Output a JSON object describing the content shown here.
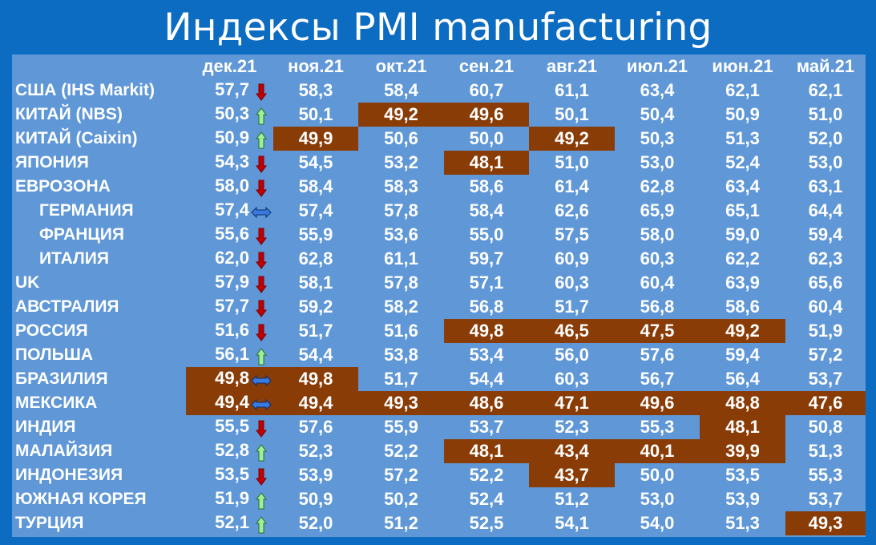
{
  "title": "Индексы PMI manufacturing",
  "columns": [
    "дек.21",
    "ноя.21",
    "окт.21",
    "сен.21",
    "авг.21",
    "июл.21",
    "июн.21",
    "май.21"
  ],
  "colors": {
    "background": "#0b6cc1",
    "table": "#5f97d7",
    "highlight": "#8a3c07",
    "text": "#ffffff",
    "down_arrow": "#c00000",
    "up_arrow": "#90ee90",
    "flat_arrow": "#3a7ae0"
  },
  "rows": [
    {
      "name": "США (IHS Markit)",
      "indent": false,
      "trend": "down",
      "values": [
        "57,7",
        "58,3",
        "58,4",
        "60,7",
        "61,1",
        "63,4",
        "62,1",
        "62,1"
      ],
      "highlight": [
        false,
        false,
        false,
        false,
        false,
        false,
        false,
        false
      ]
    },
    {
      "name": "КИТАЙ (NBS)",
      "indent": false,
      "trend": "up",
      "values": [
        "50,3",
        "50,1",
        "49,2",
        "49,6",
        "50,1",
        "50,4",
        "50,9",
        "51,0"
      ],
      "highlight": [
        false,
        false,
        true,
        true,
        false,
        false,
        false,
        false
      ]
    },
    {
      "name": "КИТАЙ (Caixin)",
      "indent": false,
      "trend": "up",
      "values": [
        "50,9",
        "49,9",
        "50,6",
        "50,0",
        "49,2",
        "50,3",
        "51,3",
        "52,0"
      ],
      "highlight": [
        false,
        true,
        false,
        false,
        true,
        false,
        false,
        false
      ]
    },
    {
      "name": "ЯПОНИЯ",
      "indent": false,
      "trend": "down",
      "values": [
        "54,3",
        "54,5",
        "53,2",
        "48,1",
        "51,0",
        "53,0",
        "52,4",
        "53,0"
      ],
      "highlight": [
        false,
        false,
        false,
        true,
        false,
        false,
        false,
        false
      ]
    },
    {
      "name": "ЕВРОЗОНА",
      "indent": false,
      "trend": "down",
      "values": [
        "58,0",
        "58,4",
        "58,3",
        "58,6",
        "61,4",
        "62,8",
        "63,4",
        "63,1"
      ],
      "highlight": [
        false,
        false,
        false,
        false,
        false,
        false,
        false,
        false
      ]
    },
    {
      "name": "ГЕРМАНИЯ",
      "indent": true,
      "trend": "flat",
      "values": [
        "57,4",
        "57,4",
        "57,8",
        "58,4",
        "62,6",
        "65,9",
        "65,1",
        "64,4"
      ],
      "highlight": [
        false,
        false,
        false,
        false,
        false,
        false,
        false,
        false
      ]
    },
    {
      "name": "ФРАНЦИЯ",
      "indent": true,
      "trend": "down",
      "values": [
        "55,6",
        "55,9",
        "53,6",
        "55,0",
        "57,5",
        "58,0",
        "59,0",
        "59,4"
      ],
      "highlight": [
        false,
        false,
        false,
        false,
        false,
        false,
        false,
        false
      ]
    },
    {
      "name": "ИТАЛИЯ",
      "indent": true,
      "trend": "down",
      "values": [
        "62,0",
        "62,8",
        "61,1",
        "59,7",
        "60,9",
        "60,3",
        "62,2",
        "62,3"
      ],
      "highlight": [
        false,
        false,
        false,
        false,
        false,
        false,
        false,
        false
      ]
    },
    {
      "name": "UK",
      "indent": false,
      "trend": "down",
      "values": [
        "57,9",
        "58,1",
        "57,8",
        "57,1",
        "60,3",
        "60,4",
        "63,9",
        "65,6"
      ],
      "highlight": [
        false,
        false,
        false,
        false,
        false,
        false,
        false,
        false
      ]
    },
    {
      "name": "АВСТРАЛИЯ",
      "indent": false,
      "trend": "down",
      "values": [
        "57,7",
        "59,2",
        "58,2",
        "56,8",
        "51,7",
        "56,8",
        "58,6",
        "60,4"
      ],
      "highlight": [
        false,
        false,
        false,
        false,
        false,
        false,
        false,
        false
      ]
    },
    {
      "name": "РОССИЯ",
      "indent": false,
      "trend": "down",
      "values": [
        "51,6",
        "51,7",
        "51,6",
        "49,8",
        "46,5",
        "47,5",
        "49,2",
        "51,9"
      ],
      "highlight": [
        false,
        false,
        false,
        true,
        true,
        true,
        true,
        false
      ]
    },
    {
      "name": "ПОЛЬША",
      "indent": false,
      "trend": "up",
      "values": [
        "56,1",
        "54,4",
        "53,8",
        "53,4",
        "56,0",
        "57,6",
        "59,4",
        "57,2"
      ],
      "highlight": [
        false,
        false,
        false,
        false,
        false,
        false,
        false,
        false
      ]
    },
    {
      "name": "БРАЗИЛИЯ",
      "indent": false,
      "trend": "flat",
      "values": [
        "49,8",
        "49,8",
        "51,7",
        "54,4",
        "60,3",
        "56,7",
        "56,4",
        "53,7"
      ],
      "highlight": [
        true,
        true,
        false,
        false,
        false,
        false,
        false,
        false
      ]
    },
    {
      "name": "МЕКСИКА",
      "indent": false,
      "trend": "flat",
      "values": [
        "49,4",
        "49,4",
        "49,3",
        "48,6",
        "47,1",
        "49,6",
        "48,8",
        "47,6"
      ],
      "highlight": [
        true,
        true,
        true,
        true,
        true,
        true,
        true,
        true
      ]
    },
    {
      "name": "ИНДИЯ",
      "indent": false,
      "trend": "down",
      "values": [
        "55,5",
        "57,6",
        "55,9",
        "53,7",
        "52,3",
        "55,3",
        "48,1",
        "50,8"
      ],
      "highlight": [
        false,
        false,
        false,
        false,
        false,
        false,
        true,
        false
      ]
    },
    {
      "name": "МАЛАЙЗИЯ",
      "indent": false,
      "trend": "up",
      "values": [
        "52,8",
        "52,3",
        "52,2",
        "48,1",
        "43,4",
        "40,1",
        "39,9",
        "51,3"
      ],
      "highlight": [
        false,
        false,
        false,
        true,
        true,
        true,
        true,
        false
      ]
    },
    {
      "name": "ИНДОНЕЗИЯ",
      "indent": false,
      "trend": "down",
      "values": [
        "53,5",
        "53,9",
        "57,2",
        "52,2",
        "43,7",
        "50,0",
        "53,5",
        "55,3"
      ],
      "highlight": [
        false,
        false,
        false,
        false,
        true,
        false,
        false,
        false
      ]
    },
    {
      "name": "ЮЖНАЯ КОРЕЯ",
      "indent": false,
      "trend": "up",
      "values": [
        "51,9",
        "50,9",
        "50,2",
        "52,4",
        "51,2",
        "53,0",
        "53,9",
        "53,7"
      ],
      "highlight": [
        false,
        false,
        false,
        false,
        false,
        false,
        false,
        false
      ]
    },
    {
      "name": "ТУРЦИЯ",
      "indent": false,
      "trend": "up",
      "values": [
        "52,1",
        "52,0",
        "51,2",
        "52,5",
        "54,1",
        "54,0",
        "51,3",
        "49,3"
      ],
      "highlight": [
        false,
        false,
        false,
        false,
        false,
        false,
        false,
        true
      ]
    }
  ]
}
